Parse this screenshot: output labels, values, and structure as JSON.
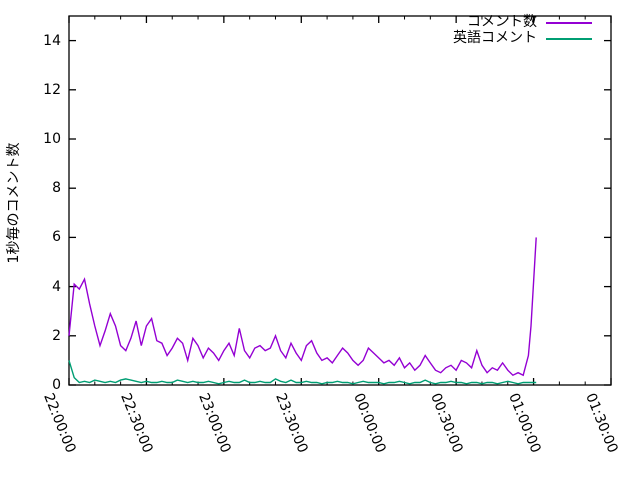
{
  "chart_data": {
    "type": "line",
    "title": "",
    "xlabel": "",
    "ylabel": "1秒毎のコメント数",
    "ylim": [
      0,
      15
    ],
    "y_ticks": [
      0,
      2,
      4,
      6,
      8,
      10,
      12,
      14
    ],
    "y_tick_labels": [
      "0",
      "2",
      "4",
      "6",
      "8",
      "10",
      "12",
      "14"
    ],
    "x_unit": "minutes since 22:00:00",
    "xlim_minutes": [
      0,
      210
    ],
    "x_tick_minutes": [
      0,
      30,
      60,
      90,
      120,
      150,
      180,
      210
    ],
    "x_tick_labels": [
      "22:00:00",
      "22:30:00",
      "23:00:00",
      "23:30:00",
      "00:00:00",
      "00:30:00",
      "01:00:00",
      "01:30:00"
    ],
    "x_minor_step_minutes": 10,
    "grid": false,
    "legend_position": "top-right-inside",
    "x": [
      0,
      2,
      4,
      6,
      8,
      10,
      12,
      14,
      16,
      18,
      20,
      22,
      24,
      26,
      28,
      30,
      32,
      34,
      36,
      38,
      40,
      42,
      44,
      46,
      48,
      50,
      52,
      54,
      56,
      58,
      60,
      62,
      64,
      66,
      68,
      70,
      72,
      74,
      76,
      78,
      80,
      82,
      84,
      86,
      88,
      90,
      92,
      94,
      96,
      98,
      100,
      102,
      104,
      106,
      108,
      110,
      112,
      114,
      116,
      118,
      120,
      122,
      124,
      126,
      128,
      130,
      132,
      134,
      136,
      138,
      140,
      142,
      144,
      146,
      148,
      150,
      152,
      154,
      156,
      158,
      160,
      162,
      164,
      166,
      168,
      170,
      172,
      174,
      176,
      178,
      179,
      180,
      181
    ],
    "series": [
      {
        "name": "コメント数",
        "color": "#9400d3",
        "values": [
          2.0,
          4.1,
          3.9,
          4.3,
          3.3,
          2.4,
          1.6,
          2.2,
          2.9,
          2.4,
          1.6,
          1.4,
          1.9,
          2.6,
          1.6,
          2.4,
          2.7,
          1.8,
          1.7,
          1.2,
          1.5,
          1.9,
          1.7,
          1.0,
          1.9,
          1.6,
          1.1,
          1.5,
          1.3,
          1.0,
          1.4,
          1.7,
          1.2,
          2.3,
          1.4,
          1.1,
          1.5,
          1.6,
          1.4,
          1.5,
          2.0,
          1.4,
          1.1,
          1.7,
          1.3,
          1.0,
          1.6,
          1.8,
          1.3,
          1.0,
          1.1,
          0.9,
          1.2,
          1.5,
          1.3,
          1.0,
          0.8,
          1.0,
          1.5,
          1.3,
          1.1,
          0.9,
          1.0,
          0.8,
          1.1,
          0.7,
          0.9,
          0.6,
          0.8,
          1.2,
          0.9,
          0.6,
          0.5,
          0.7,
          0.8,
          0.6,
          1.0,
          0.9,
          0.7,
          1.4,
          0.8,
          0.5,
          0.7,
          0.6,
          0.9,
          0.6,
          0.4,
          0.5,
          0.4,
          1.2,
          2.4,
          4.2,
          6.0
        ]
      },
      {
        "name": "英語コメント",
        "color": "#009e73",
        "values": [
          1.0,
          0.3,
          0.1,
          0.15,
          0.1,
          0.2,
          0.15,
          0.1,
          0.15,
          0.1,
          0.2,
          0.25,
          0.2,
          0.15,
          0.1,
          0.15,
          0.1,
          0.1,
          0.15,
          0.1,
          0.1,
          0.2,
          0.15,
          0.1,
          0.15,
          0.1,
          0.1,
          0.15,
          0.1,
          0.05,
          0.1,
          0.15,
          0.1,
          0.1,
          0.2,
          0.1,
          0.1,
          0.15,
          0.1,
          0.1,
          0.25,
          0.15,
          0.1,
          0.2,
          0.1,
          0.1,
          0.15,
          0.1,
          0.1,
          0.05,
          0.1,
          0.1,
          0.15,
          0.1,
          0.1,
          0.05,
          0.1,
          0.15,
          0.1,
          0.1,
          0.1,
          0.05,
          0.1,
          0.1,
          0.15,
          0.1,
          0.05,
          0.1,
          0.1,
          0.2,
          0.1,
          0.05,
          0.1,
          0.1,
          0.15,
          0.1,
          0.1,
          0.05,
          0.1,
          0.1,
          0.05,
          0.1,
          0.1,
          0.05,
          0.1,
          0.15,
          0.1,
          0.05,
          0.1,
          0.1,
          0.1,
          0.1,
          0.1
        ]
      }
    ]
  },
  "colors": {
    "background": "#ffffff",
    "axis": "#000000",
    "text": "#000000",
    "series_comment_count": "#9400d3",
    "series_english_comment": "#009e73"
  }
}
